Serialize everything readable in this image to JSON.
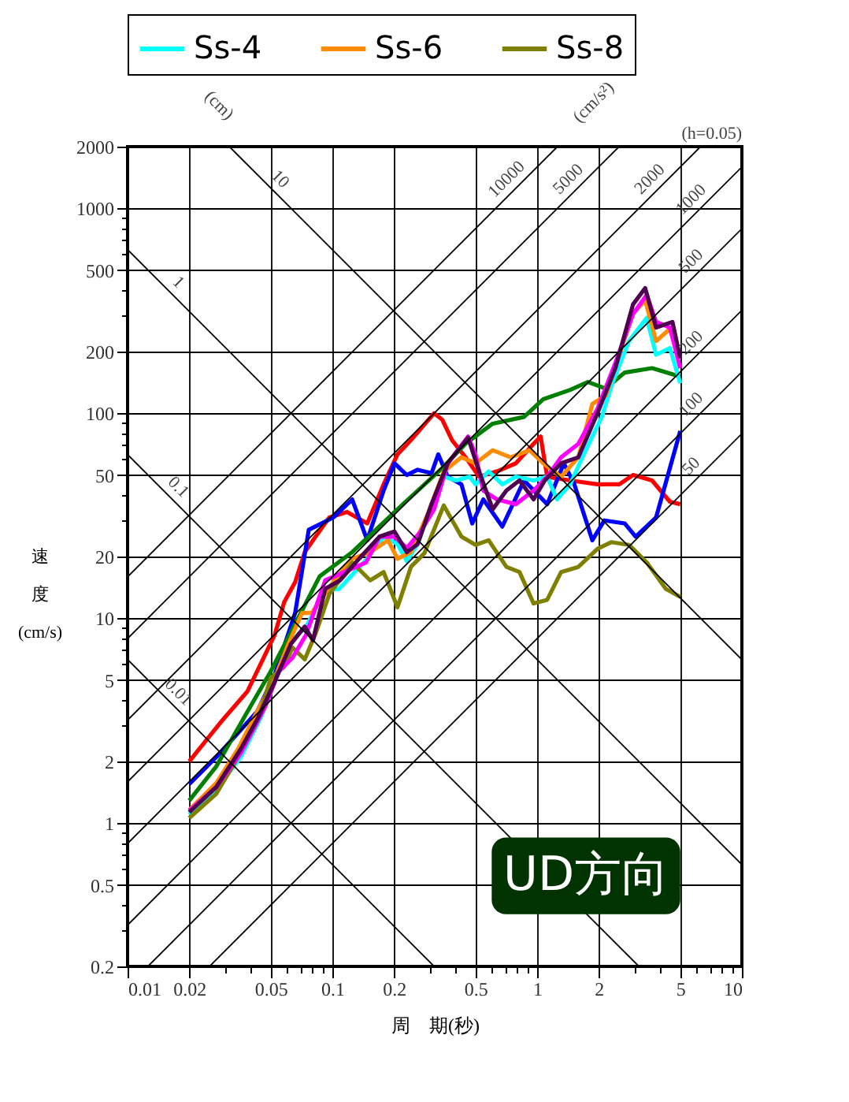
{
  "chart_data": {
    "type": "line",
    "xlabel": "周　期(秒)",
    "ylabel": "速度(cm/s)",
    "log": "xy",
    "grid": true,
    "legend": "top",
    "xlim": [
      0.01,
      10
    ],
    "ylim": [
      0.2,
      2000
    ],
    "xticks": [
      0.01,
      0.02,
      {
        "value": 0.03,
        "label": null
      },
      {
        "value": 0.04,
        "label": null
      },
      0.05,
      {
        "value": 0.06,
        "label": null
      },
      {
        "value": 0.07,
        "label": null
      },
      {
        "value": 0.08,
        "label": null
      },
      {
        "value": 0.09,
        "label": null
      },
      0.1,
      0.2,
      {
        "value": 0.3,
        "label": null
      },
      {
        "value": 0.4,
        "label": null
      },
      0.5,
      {
        "value": 0.6,
        "label": null
      },
      {
        "value": 0.7,
        "label": null
      },
      {
        "value": 0.8,
        "label": null
      },
      {
        "value": 0.9,
        "label": null
      },
      1,
      2,
      {
        "value": 3,
        "label": null
      },
      {
        "value": 4,
        "label": null
      },
      5,
      {
        "value": 6,
        "label": null
      },
      {
        "value": 7,
        "label": null
      },
      {
        "value": 8,
        "label": null
      },
      {
        "value": 9,
        "label": null
      },
      10
    ],
    "yticks": [
      0.2,
      {
        "value": 0.3,
        "label": null
      },
      {
        "value": 0.4,
        "label": null
      },
      0.5,
      {
        "value": 0.6,
        "label": null
      },
      {
        "value": 0.7,
        "label": null
      },
      {
        "value": 0.8,
        "label": null
      },
      {
        "value": 0.9,
        "label": null
      },
      1,
      2,
      {
        "value": 3,
        "label": null
      },
      {
        "value": 4,
        "label": null
      },
      5,
      {
        "value": 6,
        "label": null
      },
      {
        "value": 7,
        "label": null
      },
      {
        "value": 8,
        "label": null
      },
      {
        "value": 9,
        "label": null
      },
      10,
      20,
      {
        "value": 30,
        "label": null
      },
      {
        "value": 40,
        "label": null
      },
      50,
      {
        "value": 60,
        "label": null
      },
      {
        "value": 70,
        "label": null
      },
      {
        "value": 80,
        "label": null
      },
      {
        "value": 90,
        "label": null
      },
      100,
      200,
      {
        "value": 300,
        "label": null
      },
      {
        "value": 400,
        "label": null
      },
      500,
      {
        "value": 600,
        "label": null
      },
      {
        "value": 700,
        "label": null
      },
      {
        "value": 800,
        "label": null
      },
      {
        "value": 900,
        "label": null
      },
      1000,
      2000
    ],
    "annotations": [
      "(cm)",
      "(cm/s²)",
      "(h=0.05)",
      "UD方向"
    ],
    "series": [
      {
        "color": "#ff0000",
        "x": [
          0.02,
          0.0292,
          0.0385,
          0.0523,
          0.0582,
          0.0658,
          0.0733,
          0.0828,
          0.0966,
          0.118,
          0.148,
          0.178,
          0.208,
          0.242,
          0.314,
          0.344,
          0.384,
          0.447,
          0.521,
          0.635,
          0.787,
          0.961,
          1.04,
          1.12,
          1.45,
          1.97,
          2.52,
          2.94,
          3.64,
          4.45,
          5
        ],
        "values": [
          2.0,
          3.2,
          4.4,
          8.3,
          12,
          15,
          21,
          25,
          31,
          33,
          29,
          45,
          63,
          74,
          100,
          93,
          74,
          61,
          49,
          52,
          57,
          71,
          77,
          49,
          47,
          45,
          45,
          50,
          47,
          37,
          36
        ]
      },
      {
        "color": "#0000ff",
        "x": [
          0.02,
          0.0271,
          0.0357,
          0.0429,
          0.0523,
          0.0658,
          0.0767,
          0.101,
          0.125,
          0.148,
          0.178,
          0.201,
          0.231,
          0.261,
          0.305,
          0.329,
          0.366,
          0.427,
          0.482,
          0.546,
          0.676,
          0.863,
          1.12,
          1.35,
          1.52,
          1.86,
          2.13,
          2.68,
          3.03,
          3.81,
          5
        ],
        "values": [
          1.55,
          2.1,
          2.85,
          3.5,
          5.3,
          10.6,
          27,
          31,
          38,
          24,
          42,
          57,
          50,
          53,
          51,
          63,
          49,
          45,
          29,
          38,
          28,
          47,
          36,
          57,
          45,
          24,
          30,
          29,
          25,
          31,
          82
        ]
      },
      {
        "color": "#008000",
        "x": [
          0.02,
          0.0271,
          0.0385,
          0.05,
          0.068,
          0.0867,
          0.125,
          0.208,
          0.344,
          0.447,
          0.607,
          0.863,
          1.07,
          1.45,
          1.77,
          2.16,
          2.68,
          3.64,
          5
        ],
        "values": [
          1.29,
          1.89,
          3.5,
          5.5,
          10,
          16,
          21,
          34,
          54,
          71,
          89,
          96,
          117,
          130,
          142,
          132,
          158,
          166,
          151
        ]
      },
      {
        "name": "Ss-4",
        "color": "#00ffff",
        "x": [
          0.02,
          0.0271,
          0.0357,
          0.0449,
          0.0548,
          0.0638,
          0.0744,
          0.0923,
          0.108,
          0.148,
          0.178,
          0.208,
          0.231,
          0.261,
          0.305,
          0.35,
          0.402,
          0.468,
          0.5,
          0.58,
          0.676,
          0.787,
          0.961,
          1.12,
          1.25,
          1.45,
          1.69,
          2.07,
          2.34,
          2.81,
          3.43,
          3.81,
          4.45,
          5
        ],
        "values": [
          1.1,
          1.46,
          2.1,
          3.3,
          5.5,
          7.8,
          9.1,
          13.7,
          13.9,
          19.5,
          25,
          23,
          19,
          23,
          36,
          49,
          47,
          49,
          45,
          52,
          45,
          49,
          47,
          49,
          38,
          45,
          63,
          96,
          142,
          225,
          292,
          193,
          208,
          140
        ]
      },
      {
        "name": "Ss-6",
        "color": "#ff8c00",
        "x": [
          0.02,
          0.0271,
          0.0346,
          0.0429,
          0.0523,
          0.061,
          0.0711,
          0.0792,
          0.101,
          0.125,
          0.153,
          0.187,
          0.208,
          0.242,
          0.295,
          0.35,
          0.427,
          0.5,
          0.607,
          0.741,
          0.918,
          1.07,
          1.31,
          1.59,
          1.86,
          2.16,
          2.52,
          2.94,
          3.37,
          3.81,
          4.45,
          5
        ],
        "values": [
          1.16,
          1.57,
          2.3,
          3.5,
          5.1,
          7.5,
          10.6,
          10.6,
          15,
          19.5,
          21,
          24,
          19.5,
          21,
          33,
          52,
          61,
          57,
          66,
          61,
          66,
          57,
          49,
          61,
          111,
          122,
          193,
          305,
          356,
          225,
          258,
          185
        ]
      },
      {
        "name": "Ss-8",
        "color": "#808000",
        "x": [
          0.02,
          0.0271,
          0.0346,
          0.0429,
          0.05,
          0.0582,
          0.0638,
          0.0733,
          0.0828,
          0.0966,
          0.112,
          0.125,
          0.153,
          0.178,
          0.208,
          0.242,
          0.282,
          0.35,
          0.427,
          0.5,
          0.58,
          0.708,
          0.82,
          0.961,
          1.12,
          1.31,
          1.59,
          1.97,
          2.3,
          2.81,
          3.43,
          4.25,
          5
        ],
        "values": [
          1.06,
          1.39,
          2.1,
          3.1,
          5.1,
          5.8,
          7.2,
          6.3,
          8.4,
          13.1,
          16,
          18.7,
          15.3,
          16.8,
          11.3,
          17.8,
          20.8,
          35.5,
          25,
          22.8,
          24,
          17.8,
          16.8,
          11.8,
          12.3,
          16.8,
          17.8,
          21.8,
          23.5,
          22.8,
          18.7,
          13.9,
          12.7
        ]
      },
      {
        "color": "#ff00ff",
        "x": [
          0.02,
          0.0271,
          0.0357,
          0.047,
          0.0548,
          0.0638,
          0.0744,
          0.0923,
          0.146,
          0.17,
          0.201,
          0.231,
          0.27,
          0.314,
          0.366,
          0.46,
          0.5,
          0.546,
          0.635,
          0.787,
          0.961,
          1.12,
          1.31,
          1.59,
          1.97,
          2.41,
          2.94,
          3.43,
          3.81,
          4.45,
          5
        ],
        "values": [
          1.15,
          1.5,
          2.2,
          3.7,
          5.5,
          6.4,
          8.3,
          15.3,
          18.7,
          25,
          25,
          22,
          26.5,
          34,
          57,
          77,
          63,
          42,
          38,
          36,
          42,
          49,
          61,
          71,
          105,
          176,
          305,
          378,
          279,
          262,
          166
        ]
      },
      {
        "color": "#500050",
        "x": [
          0.02,
          0.0271,
          0.0357,
          0.0436,
          0.0523,
          0.0628,
          0.0733,
          0.0804,
          0.0923,
          0.109,
          0.135,
          0.17,
          0.201,
          0.231,
          0.261,
          0.305,
          0.366,
          0.46,
          0.521,
          0.607,
          0.708,
          0.82,
          0.961,
          1.09,
          1.31,
          1.59,
          1.97,
          2.41,
          2.94,
          3.37,
          3.81,
          4.58,
          5
        ],
        "values": [
          1.13,
          1.5,
          2.3,
          3.3,
          4.9,
          7.5,
          9.1,
          7.8,
          13.9,
          15.3,
          19.5,
          25,
          26.5,
          21,
          23,
          36,
          57,
          76,
          52,
          34,
          42,
          47,
          38,
          47,
          57,
          61,
          100,
          166,
          340,
          408,
          262,
          279,
          185
        ]
      },
      {
        "name": "10000",
        "color": "#000000",
        "x": [
          0.01,
          1.2566
        ],
        "values": [
          15.92,
          2000
        ]
      },
      {
        "name": "5000",
        "color": "#000000",
        "x": [
          0.01,
          2.5133
        ],
        "values": [
          7.958,
          2000
        ]
      },
      {
        "name": "2000",
        "color": "#000000",
        "x": [
          0.01,
          6.2832
        ],
        "values": [
          3.183,
          2000
        ]
      },
      {
        "name": "1000",
        "color": "#000000",
        "x": [
          0.01,
          10
        ],
        "values": [
          1.592,
          1592
        ]
      },
      {
        "name": "500",
        "color": "#000000",
        "x": [
          0.01,
          10
        ],
        "values": [
          0.7958,
          795.8
        ]
      },
      {
        "name": "200",
        "color": "#000000",
        "x": [
          0.01,
          10
        ],
        "values": [
          0.3183,
          318.3
        ]
      },
      {
        "name": "100",
        "color": "#000000",
        "x": [
          0.012566,
          10
        ],
        "values": [
          0.2,
          159.2
        ]
      },
      {
        "name": "50",
        "color": "#000000",
        "x": [
          0.025133,
          10
        ],
        "values": [
          0.2,
          79.58
        ]
      },
      {
        "name": "10",
        "color": "#000000",
        "x": [
          0.031416,
          10
        ],
        "values": [
          2000,
          6.283
        ]
      },
      {
        "name": "1",
        "color": "#000000",
        "x": [
          0.01,
          10
        ],
        "values": [
          628.3,
          0.6283
        ]
      },
      {
        "name": "0.1",
        "color": "#000000",
        "x": [
          0.01,
          3.1416
        ],
        "values": [
          62.83,
          0.2
        ]
      },
      {
        "name": "0.01",
        "color": "#000000",
        "x": [
          0.01,
          0.31416
        ],
        "values": [
          6.283,
          0.2
        ]
      }
    ]
  }
}
